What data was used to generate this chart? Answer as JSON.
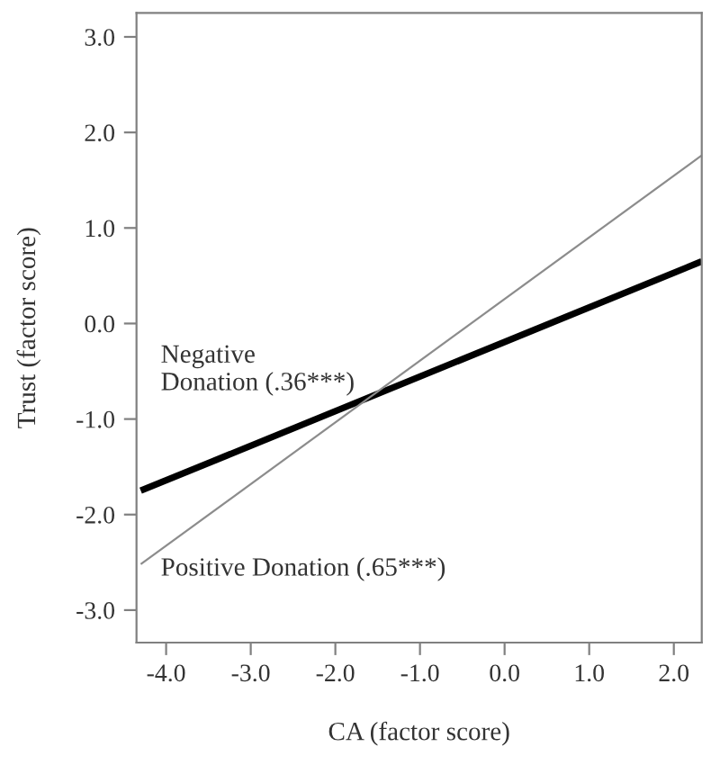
{
  "chart_data": {
    "type": "line",
    "xlabel": "CA (factor score)",
    "ylabel": "Trust (factor score)",
    "x": [
      -4.3,
      2.33
    ],
    "series": [
      {
        "name": "Negative\nDonation (.36***)",
        "color": "#000000",
        "values": [
          -1.75,
          0.65
        ]
      },
      {
        "name": "Positive Donation (.65***)",
        "color": "#8c8c8c",
        "values": [
          -2.52,
          1.76
        ]
      }
    ],
    "xlim": [
      -4.35,
      2.33
    ],
    "ylim": [
      -3.34,
      3.25
    ],
    "xticks": [
      {
        "value": -4,
        "label": "-4.0"
      },
      {
        "value": -3,
        "label": "-3.0"
      },
      {
        "value": -2,
        "label": "-2.0"
      },
      {
        "value": -1,
        "label": "-1.0"
      },
      {
        "value": 0,
        "label": "0.0"
      },
      {
        "value": 1,
        "label": "1.0"
      },
      {
        "value": 2,
        "label": "2.0"
      }
    ],
    "yticks": [
      {
        "value": -3,
        "label": "-3.0"
      },
      {
        "value": -2,
        "label": "-2.0"
      },
      {
        "value": -1,
        "label": "-1.0"
      },
      {
        "value": 0,
        "label": "0.0"
      },
      {
        "value": 1,
        "label": "1.0"
      },
      {
        "value": 2,
        "label": "2.0"
      },
      {
        "value": 3,
        "label": "3.0"
      }
    ],
    "grid": false,
    "legend": false,
    "marker": "none",
    "line_style": "solid"
  }
}
